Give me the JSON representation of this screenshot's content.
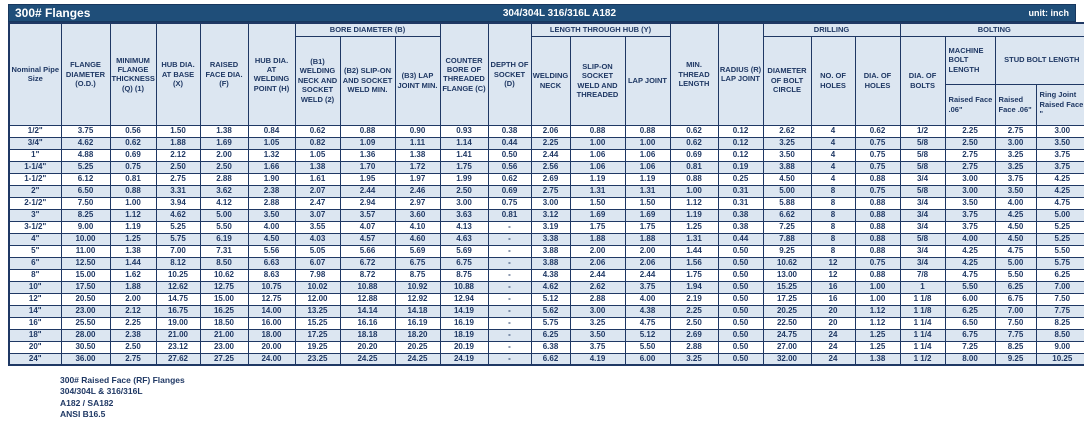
{
  "title_bar": {
    "title": "300# Flanges",
    "material": "304/304L 316/316L A182",
    "unit": "unit: inch"
  },
  "table": {
    "headers": {
      "pipe": "Nominal Pipe Size",
      "od": "FLANGE DIAMETER (O.D.)",
      "thickness": "MINIMUM FLANGE THICKNESS (Q) (1)",
      "hub_base": "HUB DIA. AT BASE (X)",
      "raised_face": "RAISED FACE DIA. (F)",
      "hub_weld": "HUB DIA. AT WELDING POINT (H)",
      "bore_group": "BORE DIAMETER (B)",
      "b1": "(B1) WELDING NECK AND SOCKET WELD (2)",
      "b2": "(B2) SLIP-ON AND SOCKET WELD MIN.",
      "b3": "(B3) LAP JOINT MIN.",
      "counter_bore": "COUNTER BORE OF THREADED FLANGE (C)",
      "depth_socket": "DEPTH OF SOCKET (D)",
      "length_group": "LENGTH THROUGH HUB (Y)",
      "welding_neck": "WELDING NECK",
      "slip_on": "SLIP-ON SOCKET WELD AND THREADED",
      "lap_joint": "LAP JOINT",
      "min_thread": "MIN. THREAD LENGTH",
      "radius": "RADIUS (R) LAP JOINT",
      "drilling_group": "DRILLING",
      "bolt_circle": "DIAMETER OF BOLT CIRCLE",
      "no_holes": "NO. OF HOLES",
      "dia_holes": "DIA. OF HOLES",
      "bolting_group": "BOLTING",
      "dia_bolts": "DIA. OF BOLTS",
      "machine_bolt": "MACHINE BOLT LENGTH",
      "stud_bolt": "STUD BOLT LENGTH",
      "machine_raised": "Raised Face .06\"",
      "stud_raised": "Raised Face .06\"",
      "ring_joint": "Ring Joint Raised Face \""
    },
    "rows": [
      {
        "size": "1/2\"",
        "values": [
          "3.75",
          "0.56",
          "1.50",
          "1.38",
          "0.84",
          "0.62",
          "0.88",
          "0.90",
          "0.93",
          "0.38",
          "2.06",
          "0.88",
          "0.88",
          "0.62",
          "0.12",
          "2.62",
          "4",
          "0.62",
          "1/2",
          "2.25",
          "2.75",
          "3.00"
        ]
      },
      {
        "size": "3/4\"",
        "values": [
          "4.62",
          "0.62",
          "1.88",
          "1.69",
          "1.05",
          "0.82",
          "1.09",
          "1.11",
          "1.14",
          "0.44",
          "2.25",
          "1.00",
          "1.00",
          "0.62",
          "0.12",
          "3.25",
          "4",
          "0.75",
          "5/8",
          "2.50",
          "3.00",
          "3.50"
        ]
      },
      {
        "size": "1\"",
        "values": [
          "4.88",
          "0.69",
          "2.12",
          "2.00",
          "1.32",
          "1.05",
          "1.36",
          "1.38",
          "1.41",
          "0.50",
          "2.44",
          "1.06",
          "1.06",
          "0.69",
          "0.12",
          "3.50",
          "4",
          "0.75",
          "5/8",
          "2.75",
          "3.25",
          "3.75"
        ]
      },
      {
        "size": "1-1/4\"",
        "values": [
          "5.25",
          "0.75",
          "2.50",
          "2.50",
          "1.66",
          "1.38",
          "1.70",
          "1.72",
          "1.75",
          "0.56",
          "2.56",
          "1.06",
          "1.06",
          "0.81",
          "0.19",
          "3.88",
          "4",
          "0.75",
          "5/8",
          "2.75",
          "3.25",
          "3.75"
        ]
      },
      {
        "size": "1-1/2\"",
        "values": [
          "6.12",
          "0.81",
          "2.75",
          "2.88",
          "1.90",
          "1.61",
          "1.95",
          "1.97",
          "1.99",
          "0.62",
          "2.69",
          "1.19",
          "1.19",
          "0.88",
          "0.25",
          "4.50",
          "4",
          "0.88",
          "3/4",
          "3.00",
          "3.75",
          "4.25"
        ]
      },
      {
        "size": "2\"",
        "values": [
          "6.50",
          "0.88",
          "3.31",
          "3.62",
          "2.38",
          "2.07",
          "2.44",
          "2.46",
          "2.50",
          "0.69",
          "2.75",
          "1.31",
          "1.31",
          "1.00",
          "0.31",
          "5.00",
          "8",
          "0.75",
          "5/8",
          "3.00",
          "3.50",
          "4.25"
        ]
      },
      {
        "size": "2-1/2\"",
        "values": [
          "7.50",
          "1.00",
          "3.94",
          "4.12",
          "2.88",
          "2.47",
          "2.94",
          "2.97",
          "3.00",
          "0.75",
          "3.00",
          "1.50",
          "1.50",
          "1.12",
          "0.31",
          "5.88",
          "8",
          "0.88",
          "3/4",
          "3.50",
          "4.00",
          "4.75"
        ]
      },
      {
        "size": "3\"",
        "values": [
          "8.25",
          "1.12",
          "4.62",
          "5.00",
          "3.50",
          "3.07",
          "3.57",
          "3.60",
          "3.63",
          "0.81",
          "3.12",
          "1.69",
          "1.69",
          "1.19",
          "0.38",
          "6.62",
          "8",
          "0.88",
          "3/4",
          "3.75",
          "4.25",
          "5.00"
        ]
      },
      {
        "size": "3-1/2\"",
        "values": [
          "9.00",
          "1.19",
          "5.25",
          "5.50",
          "4.00",
          "3.55",
          "4.07",
          "4.10",
          "4.13",
          "-",
          "3.19",
          "1.75",
          "1.75",
          "1.25",
          "0.38",
          "7.25",
          "8",
          "0.88",
          "3/4",
          "3.75",
          "4.50",
          "5.25"
        ]
      },
      {
        "size": "4\"",
        "values": [
          "10.00",
          "1.25",
          "5.75",
          "6.19",
          "4.50",
          "4.03",
          "4.57",
          "4.60",
          "4.63",
          "-",
          "3.38",
          "1.88",
          "1.88",
          "1.31",
          "0.44",
          "7.88",
          "8",
          "0.88",
          "5/8",
          "4.00",
          "4.50",
          "5.25"
        ]
      },
      {
        "size": "5\"",
        "values": [
          "11.00",
          "1.38",
          "7.00",
          "7.31",
          "5.56",
          "5.05",
          "5.66",
          "5.69",
          "5.69",
          "-",
          "3.88",
          "2.00",
          "2.00",
          "1.44",
          "0.50",
          "9.25",
          "8",
          "0.88",
          "3/4",
          "4.25",
          "4.75",
          "5.50"
        ]
      },
      {
        "size": "6\"",
        "values": [
          "12.50",
          "1.44",
          "8.12",
          "8.50",
          "6.63",
          "6.07",
          "6.72",
          "6.75",
          "6.75",
          "-",
          "3.88",
          "2.06",
          "2.06",
          "1.56",
          "0.50",
          "10.62",
          "12",
          "0.75",
          "3/4",
          "4.25",
          "5.00",
          "5.75"
        ]
      },
      {
        "size": "8\"",
        "values": [
          "15.00",
          "1.62",
          "10.25",
          "10.62",
          "8.63",
          "7.98",
          "8.72",
          "8.75",
          "8.75",
          "-",
          "4.38",
          "2.44",
          "2.44",
          "1.75",
          "0.50",
          "13.00",
          "12",
          "0.88",
          "7/8",
          "4.75",
          "5.50",
          "6.25"
        ]
      },
      {
        "size": "10\"",
        "values": [
          "17.50",
          "1.88",
          "12.62",
          "12.75",
          "10.75",
          "10.02",
          "10.88",
          "10.92",
          "10.88",
          "-",
          "4.62",
          "2.62",
          "3.75",
          "1.94",
          "0.50",
          "15.25",
          "16",
          "1.00",
          "1",
          "5.50",
          "6.25",
          "7.00"
        ]
      },
      {
        "size": "12\"",
        "values": [
          "20.50",
          "2.00",
          "14.75",
          "15.00",
          "12.75",
          "12.00",
          "12.88",
          "12.92",
          "12.94",
          "-",
          "5.12",
          "2.88",
          "4.00",
          "2.19",
          "0.50",
          "17.25",
          "16",
          "1.00",
          "1 1/8",
          "6.00",
          "6.75",
          "7.50"
        ]
      },
      {
        "size": "14\"",
        "values": [
          "23.00",
          "2.12",
          "16.75",
          "16.25",
          "14.00",
          "13.25",
          "14.14",
          "14.18",
          "14.19",
          "-",
          "5.62",
          "3.00",
          "4.38",
          "2.25",
          "0.50",
          "20.25",
          "20",
          "1.12",
          "1 1/8",
          "6.25",
          "7.00",
          "7.75"
        ]
      },
      {
        "size": "16\"",
        "values": [
          "25.50",
          "2.25",
          "19.00",
          "18.50",
          "16.00",
          "15.25",
          "16.16",
          "16.19",
          "16.19",
          "-",
          "5.75",
          "3.25",
          "4.75",
          "2.50",
          "0.50",
          "22.50",
          "20",
          "1.12",
          "1 1/4",
          "6.50",
          "7.50",
          "8.25"
        ]
      },
      {
        "size": "18\"",
        "values": [
          "28.00",
          "2.38",
          "21.00",
          "21.00",
          "18.00",
          "17.25",
          "18.18",
          "18.20",
          "18.19",
          "-",
          "6.25",
          "3.50",
          "5.12",
          "2.69",
          "0.50",
          "24.75",
          "24",
          "1.25",
          "1 1/4",
          "6.75",
          "7.75",
          "8.50"
        ]
      },
      {
        "size": "20\"",
        "values": [
          "30.50",
          "2.50",
          "23.12",
          "23.00",
          "20.00",
          "19.25",
          "20.20",
          "20.25",
          "20.19",
          "-",
          "6.38",
          "3.75",
          "5.50",
          "2.88",
          "0.50",
          "27.00",
          "24",
          "1.25",
          "1 1/4",
          "7.25",
          "8.25",
          "9.00"
        ]
      },
      {
        "size": "24\"",
        "values": [
          "36.00",
          "2.75",
          "27.62",
          "27.25",
          "24.00",
          "23.25",
          "24.25",
          "24.25",
          "24.19",
          "-",
          "6.62",
          "4.19",
          "6.00",
          "3.25",
          "0.50",
          "32.00",
          "24",
          "1.38",
          "1 1/2",
          "8.00",
          "9.25",
          "10.25"
        ]
      }
    ]
  },
  "notes": [
    "300# Raised Face (RF) Flanges",
    "304/304L & 316/316L",
    "A182 / SA182",
    "ANSI B16.5"
  ],
  "colors": {
    "title_bar_bg": "#1F4E79",
    "header_bg": "#DCE6F1",
    "alt_row_bg": "#DCE6F1",
    "border": "#1F3864",
    "text": "#1F3864",
    "title_text": "#FFFFFF"
  }
}
